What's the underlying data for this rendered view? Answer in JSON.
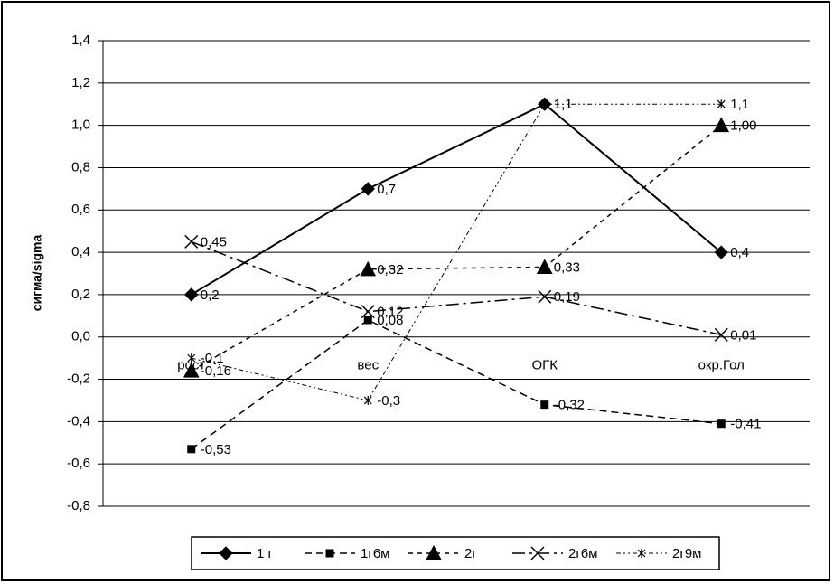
{
  "chart_data": {
    "type": "line",
    "y_label": "сигма/sigma",
    "categories": [
      "рост",
      "вес",
      "ОГК",
      "окр.Гол"
    ],
    "ylim": [
      -0.8,
      1.4
    ],
    "yticks": [
      {
        "value": -0.8,
        "label": "-0,8"
      },
      {
        "value": -0.6,
        "label": "-0,6"
      },
      {
        "value": -0.4,
        "label": "-0,4"
      },
      {
        "value": -0.2,
        "label": "-0,2"
      },
      {
        "value": 0,
        "label": "0,0"
      },
      {
        "value": 0.2,
        "label": "0,2"
      },
      {
        "value": 0.4,
        "label": "0,4"
      },
      {
        "value": 0.6,
        "label": "0,6"
      },
      {
        "value": 0.8,
        "label": "0,8"
      },
      {
        "value": 1.0,
        "label": "1,0"
      },
      {
        "value": 1.2,
        "label": "1,2"
      },
      {
        "value": 1.4,
        "label": "1,4"
      }
    ],
    "grid": true,
    "series": [
      {
        "name": "1 г",
        "color": "#000000",
        "values": [
          0.2,
          0.7,
          1.1,
          0.4
        ],
        "value_labels": [
          "0,2",
          "0,7",
          "1,1",
          "0,4"
        ]
      },
      {
        "name": "1г6м",
        "color": "#000000",
        "values": [
          -0.53,
          0.08,
          -0.32,
          -0.41
        ],
        "value_labels": [
          "-0,53",
          "0,08",
          "-0,32",
          "-0,41"
        ]
      },
      {
        "name": "2г",
        "color": "#000000",
        "values": [
          -0.16,
          0.32,
          0.33,
          1.0
        ],
        "value_labels": [
          "-0,16",
          "0,32",
          "0,33",
          "1,00"
        ]
      },
      {
        "name": "2г6м",
        "color": "#000000",
        "values": [
          0.45,
          0.12,
          0.19,
          0.01
        ],
        "value_labels": [
          "0,45",
          "0,12",
          "0,19",
          "0,01"
        ]
      },
      {
        "name": "2г9м",
        "color": "#000000",
        "values": [
          -0.1,
          -0.3,
          1.1,
          1.1
        ],
        "value_labels": [
          "-0,1",
          "-0,3",
          "1,1",
          "1,1"
        ]
      }
    ]
  }
}
